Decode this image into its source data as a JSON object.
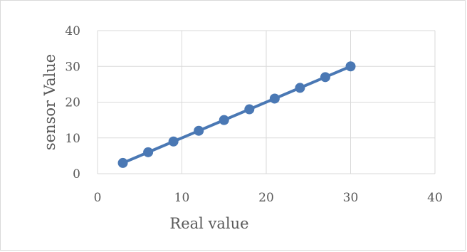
{
  "chart_data": {
    "type": "line",
    "title": "",
    "xlabel": "Real value",
    "ylabel": "sensor Value",
    "xlim": [
      0,
      40
    ],
    "ylim": [
      0,
      40
    ],
    "x_ticks": [
      "0",
      "10",
      "20",
      "30",
      "40"
    ],
    "y_ticks": [
      "0",
      "10",
      "20",
      "30",
      "40"
    ],
    "grid": true,
    "legend": "none",
    "series": [
      {
        "color": "#4a78b4",
        "marker": "circle",
        "points": [
          {
            "x": 3,
            "y": 3
          },
          {
            "x": 6,
            "y": 6
          },
          {
            "x": 9,
            "y": 9
          },
          {
            "x": 12,
            "y": 12
          },
          {
            "x": 15,
            "y": 15
          },
          {
            "x": 18,
            "y": 18
          },
          {
            "x": 21,
            "y": 21
          },
          {
            "x": 24,
            "y": 24
          },
          {
            "x": 27,
            "y": 27
          },
          {
            "x": 30,
            "y": 30
          }
        ]
      }
    ]
  },
  "colors": {
    "gridline": "#d9d9d9",
    "axis_line": "#d9d9d9"
  }
}
